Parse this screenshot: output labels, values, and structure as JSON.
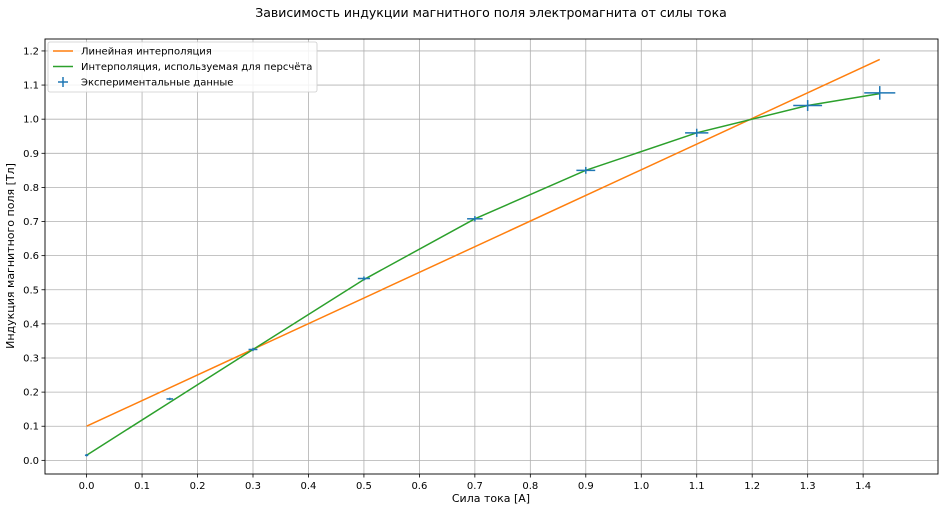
{
  "chart_data": {
    "type": "line",
    "title": "Зависимость индукции магнитного поля электромагнита от силы тока",
    "xlabel": "Сила тока [А]",
    "ylabel": "Индукция магнитного поля [Тл]",
    "xlim": [
      -0.075,
      1.535
    ],
    "ylim": [
      -0.04,
      1.235
    ],
    "xticks": [
      0.0,
      0.1,
      0.2,
      0.3,
      0.4,
      0.5,
      0.6,
      0.7,
      0.8,
      0.9,
      1.0,
      1.1,
      1.2,
      1.3,
      1.4
    ],
    "yticks": [
      0.0,
      0.1,
      0.2,
      0.3,
      0.4,
      0.5,
      0.6,
      0.7,
      0.8,
      0.9,
      1.0,
      1.1,
      1.2
    ],
    "grid": true,
    "legend_position": "top-left",
    "series": [
      {
        "name": "Линейная интерполяция",
        "kind": "line",
        "color": "#ff7f0e",
        "x": [
          0.0,
          1.43
        ],
        "y": [
          0.1,
          1.175
        ]
      },
      {
        "name": "Интерполяция, используемая для персчёта",
        "kind": "line",
        "color": "#2ca02c",
        "x": [
          0.0,
          0.15,
          0.3,
          0.5,
          0.7,
          0.9,
          1.1,
          1.3,
          1.43
        ],
        "y": [
          0.015,
          0.17,
          0.325,
          0.53,
          0.708,
          0.85,
          0.96,
          1.04,
          1.075
        ]
      },
      {
        "name": "Экспериментальные данные",
        "kind": "errorbar",
        "color": "#1f77b4",
        "x": [
          0.0,
          0.15,
          0.3,
          0.5,
          0.7,
          0.9,
          1.1,
          1.3,
          1.43
        ],
        "y": [
          0.015,
          0.18,
          0.325,
          0.533,
          0.708,
          0.85,
          0.96,
          1.04,
          1.077
        ],
        "xerr": [
          0.003,
          0.006,
          0.008,
          0.011,
          0.014,
          0.017,
          0.021,
          0.026,
          0.028
        ],
        "yerr": [
          0.002,
          0.003,
          0.005,
          0.006,
          0.008,
          0.01,
          0.012,
          0.016,
          0.02
        ]
      }
    ]
  }
}
